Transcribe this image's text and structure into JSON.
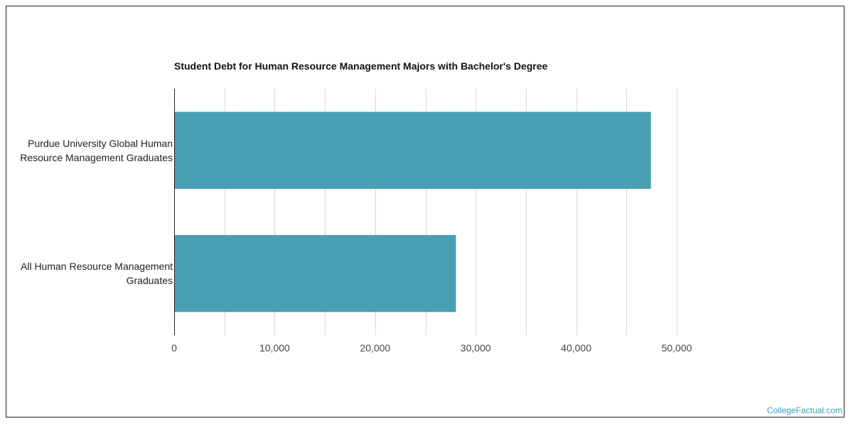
{
  "chart_data": {
    "type": "bar",
    "orientation": "horizontal",
    "title": "Student Debt for Human Resource Management Majors with Bachelor's Degree",
    "xlabel": "",
    "ylabel": "",
    "categories": [
      "Purdue University Global Human Resource Management Graduates",
      "All Human Resource Management Graduates"
    ],
    "category_lines": [
      [
        "Purdue University Global Human",
        "Resource Management Graduates"
      ],
      [
        "All Human Resource Management",
        "Graduates"
      ]
    ],
    "values": [
      47400,
      28000
    ],
    "xlim": [
      0,
      50000
    ],
    "ticks": [
      0,
      10000,
      20000,
      30000,
      40000,
      50000
    ],
    "tick_labels": [
      "0",
      "10,000",
      "20,000",
      "30,000",
      "40,000",
      "50,000"
    ],
    "grid": true,
    "bar_color": "#4aa0b3"
  },
  "watermark": "CollegeFactual.com"
}
